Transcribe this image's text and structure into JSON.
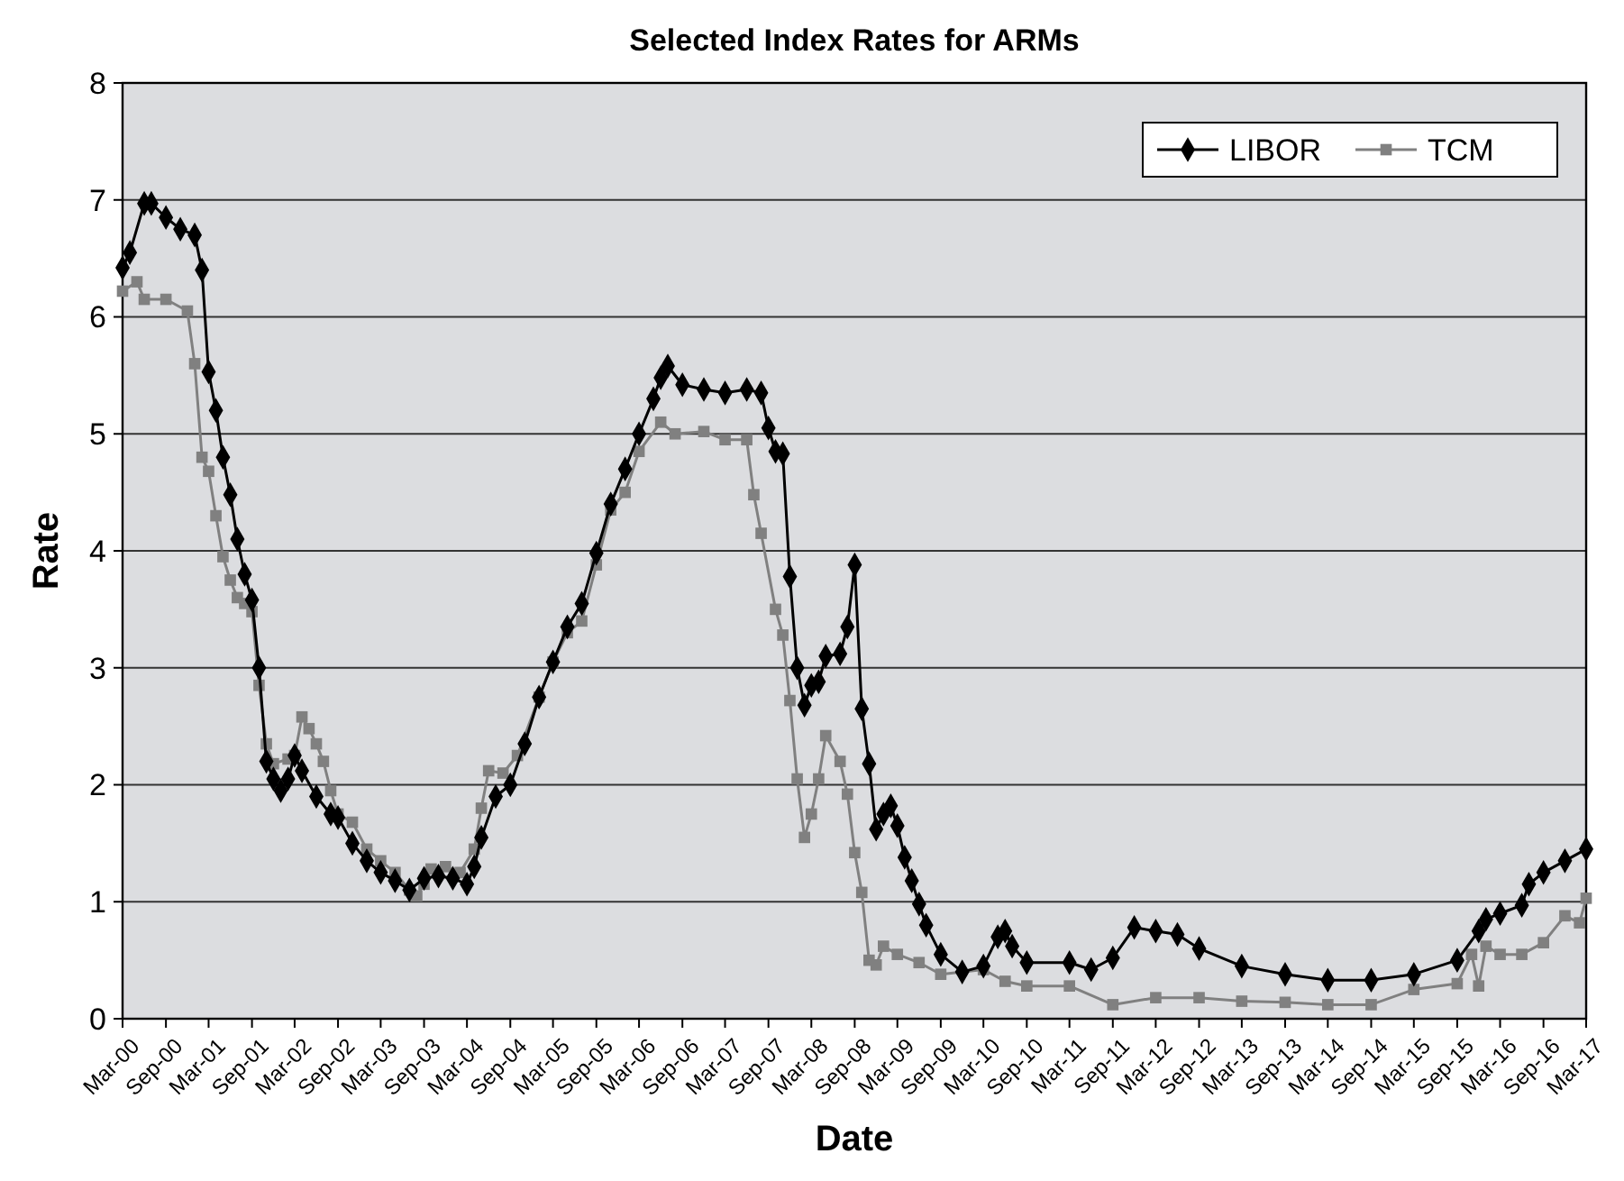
{
  "chart_data": {
    "type": "line",
    "title": "Selected Index Rates for ARMs",
    "xlabel": "Date",
    "ylabel": "Rate",
    "ylim": [
      0,
      8
    ],
    "yticks": [
      0,
      1,
      2,
      3,
      4,
      5,
      6,
      7,
      8
    ],
    "xlim": [
      "2000-03",
      "2017-03"
    ],
    "xticks": [
      {
        "value": "2000-03",
        "label": "Mar-00"
      },
      {
        "value": "2000-09",
        "label": "Sep-00"
      },
      {
        "value": "2001-03",
        "label": "Mar-01"
      },
      {
        "value": "2001-09",
        "label": "Sep-01"
      },
      {
        "value": "2002-03",
        "label": "Mar-02"
      },
      {
        "value": "2002-09",
        "label": "Sep-02"
      },
      {
        "value": "2003-03",
        "label": "Mar-03"
      },
      {
        "value": "2003-09",
        "label": "Sep-03"
      },
      {
        "value": "2004-03",
        "label": "Mar-04"
      },
      {
        "value": "2004-09",
        "label": "Sep-04"
      },
      {
        "value": "2005-03",
        "label": "Mar-05"
      },
      {
        "value": "2005-09",
        "label": "Sep-05"
      },
      {
        "value": "2006-03",
        "label": "Mar-06"
      },
      {
        "value": "2006-09",
        "label": "Sep-06"
      },
      {
        "value": "2007-03",
        "label": "Mar-07"
      },
      {
        "value": "2007-09",
        "label": "Sep-07"
      },
      {
        "value": "2008-03",
        "label": "Mar-08"
      },
      {
        "value": "2008-09",
        "label": "Sep-08"
      },
      {
        "value": "2009-03",
        "label": "Mar-09"
      },
      {
        "value": "2009-09",
        "label": "Sep-09"
      },
      {
        "value": "2010-03",
        "label": "Mar-10"
      },
      {
        "value": "2010-09",
        "label": "Sep-10"
      },
      {
        "value": "2011-03",
        "label": "Mar-11"
      },
      {
        "value": "2011-09",
        "label": "Sep-11"
      },
      {
        "value": "2012-03",
        "label": "Mar-12"
      },
      {
        "value": "2012-09",
        "label": "Sep-12"
      },
      {
        "value": "2013-03",
        "label": "Mar-13"
      },
      {
        "value": "2013-09",
        "label": "Sep-13"
      },
      {
        "value": "2014-03",
        "label": "Mar-14"
      },
      {
        "value": "2014-09",
        "label": "Sep-14"
      },
      {
        "value": "2015-03",
        "label": "Mar-15"
      },
      {
        "value": "2015-09",
        "label": "Sep-15"
      },
      {
        "value": "2016-03",
        "label": "Mar-16"
      },
      {
        "value": "2016-09",
        "label": "Sep-16"
      },
      {
        "value": "2017-03",
        "label": "Mar-17"
      }
    ],
    "grid": "y",
    "legend": "top right",
    "line_style": "solid",
    "series": [
      {
        "name": "LIBOR",
        "color": "#000000",
        "marker": "diamond",
        "x": [
          "2000-03",
          "2000-04",
          "2000-06",
          "2000-07",
          "2000-09",
          "2000-11",
          "2001-01",
          "2001-02",
          "2001-03",
          "2001-04",
          "2001-05",
          "2001-06",
          "2001-07",
          "2001-08",
          "2001-09",
          "2001-10",
          "2001-11",
          "2001-12",
          "2002-01",
          "2002-02",
          "2002-03",
          "2002-04",
          "2002-06",
          "2002-08",
          "2002-09",
          "2002-11",
          "2003-01",
          "2003-03",
          "2003-05",
          "2003-07",
          "2003-09",
          "2003-11",
          "2004-01",
          "2004-03",
          "2004-04",
          "2004-05",
          "2004-07",
          "2004-09",
          "2004-11",
          "2005-01",
          "2005-03",
          "2005-05",
          "2005-07",
          "2005-09",
          "2005-11",
          "2006-01",
          "2006-03",
          "2006-05",
          "2006-06",
          "2006-07",
          "2006-09",
          "2006-12",
          "2007-03",
          "2007-06",
          "2007-08",
          "2007-09",
          "2007-10",
          "2007-11",
          "2007-12",
          "2008-01",
          "2008-02",
          "2008-03",
          "2008-04",
          "2008-05",
          "2008-07",
          "2008-08",
          "2008-09",
          "2008-10",
          "2008-11",
          "2008-12",
          "2009-01",
          "2009-02",
          "2009-03",
          "2009-04",
          "2009-05",
          "2009-06",
          "2009-07",
          "2009-09",
          "2009-12",
          "2010-03",
          "2010-05",
          "2010-06",
          "2010-07",
          "2010-09",
          "2011-03",
          "2011-06",
          "2011-09",
          "2011-12",
          "2012-03",
          "2012-06",
          "2012-09",
          "2013-03",
          "2013-09",
          "2014-03",
          "2014-09",
          "2015-03",
          "2015-09",
          "2015-12",
          "2016-01",
          "2016-03",
          "2016-06",
          "2016-07",
          "2016-09",
          "2016-12",
          "2017-03"
        ],
        "values": [
          6.42,
          6.55,
          6.97,
          6.97,
          6.85,
          6.75,
          6.7,
          6.4,
          5.53,
          5.2,
          4.8,
          4.48,
          4.1,
          3.8,
          3.58,
          3.0,
          2.2,
          2.05,
          1.95,
          2.05,
          2.25,
          2.12,
          1.9,
          1.75,
          1.72,
          1.5,
          1.35,
          1.25,
          1.18,
          1.1,
          1.2,
          1.22,
          1.2,
          1.15,
          1.3,
          1.55,
          1.9,
          2.0,
          2.35,
          2.75,
          3.05,
          3.35,
          3.55,
          3.98,
          4.4,
          4.7,
          5.0,
          5.3,
          5.48,
          5.58,
          5.42,
          5.38,
          5.35,
          5.38,
          5.35,
          5.05,
          4.85,
          4.83,
          3.78,
          3.0,
          2.68,
          2.85,
          2.88,
          3.1,
          3.12,
          3.35,
          3.88,
          2.65,
          2.18,
          1.62,
          1.75,
          1.82,
          1.65,
          1.38,
          1.18,
          0.98,
          0.8,
          0.55,
          0.4,
          0.45,
          0.7,
          0.75,
          0.62,
          0.48,
          0.48,
          0.42,
          0.52,
          0.78,
          0.75,
          0.72,
          0.6,
          0.45,
          0.38,
          0.33,
          0.33,
          0.38,
          0.5,
          0.75,
          0.85,
          0.9,
          0.97,
          1.15,
          1.25,
          1.35,
          1.45
        ]
      },
      {
        "name": "TCM",
        "color": "#808080",
        "marker": "square",
        "x": [
          "2000-03",
          "2000-05",
          "2000-06",
          "2000-09",
          "2000-12",
          "2001-01",
          "2001-02",
          "2001-03",
          "2001-04",
          "2001-05",
          "2001-06",
          "2001-07",
          "2001-08",
          "2001-09",
          "2001-10",
          "2001-11",
          "2001-12",
          "2002-02",
          "2002-03",
          "2002-04",
          "2002-05",
          "2002-06",
          "2002-07",
          "2002-08",
          "2002-09",
          "2002-11",
          "2003-01",
          "2003-03",
          "2003-05",
          "2003-07",
          "2003-08",
          "2003-09",
          "2003-10",
          "2003-12",
          "2004-02",
          "2004-04",
          "2004-05",
          "2004-06",
          "2004-08",
          "2004-10",
          "2005-01",
          "2005-03",
          "2005-05",
          "2005-07",
          "2005-09",
          "2005-11",
          "2006-01",
          "2006-03",
          "2006-06",
          "2006-08",
          "2006-12",
          "2007-03",
          "2007-06",
          "2007-07",
          "2007-08",
          "2007-10",
          "2007-11",
          "2007-12",
          "2008-01",
          "2008-02",
          "2008-03",
          "2008-04",
          "2008-05",
          "2008-07",
          "2008-08",
          "2008-09",
          "2008-10",
          "2008-11",
          "2008-12",
          "2009-01",
          "2009-03",
          "2009-06",
          "2009-09",
          "2010-03",
          "2010-06",
          "2010-09",
          "2011-03",
          "2011-09",
          "2012-03",
          "2012-09",
          "2013-03",
          "2013-09",
          "2014-03",
          "2014-09",
          "2015-03",
          "2015-09",
          "2015-11",
          "2015-12",
          "2016-01",
          "2016-03",
          "2016-06",
          "2016-09",
          "2016-12",
          "2017-02",
          "2017-03"
        ],
        "values": [
          6.22,
          6.3,
          6.15,
          6.15,
          6.05,
          5.6,
          4.8,
          4.68,
          4.3,
          3.95,
          3.75,
          3.6,
          3.55,
          3.48,
          2.85,
          2.35,
          2.18,
          2.22,
          2.25,
          2.58,
          2.48,
          2.35,
          2.2,
          1.95,
          1.75,
          1.68,
          1.45,
          1.35,
          1.25,
          1.1,
          1.05,
          1.15,
          1.28,
          1.3,
          1.25,
          1.45,
          1.8,
          2.12,
          2.1,
          2.25,
          2.75,
          3.05,
          3.3,
          3.4,
          3.88,
          4.35,
          4.5,
          4.85,
          5.1,
          5.0,
          5.02,
          4.95,
          4.95,
          4.48,
          4.15,
          3.5,
          3.28,
          2.72,
          2.05,
          1.55,
          1.75,
          2.05,
          2.42,
          2.2,
          1.92,
          1.42,
          1.08,
          0.5,
          0.46,
          0.62,
          0.55,
          0.48,
          0.38,
          0.42,
          0.32,
          0.28,
          0.28,
          0.12,
          0.18,
          0.18,
          0.15,
          0.14,
          0.12,
          0.12,
          0.25,
          0.3,
          0.55,
          0.28,
          0.62,
          0.55,
          0.55,
          0.65,
          0.88,
          0.82,
          1.03
        ]
      }
    ]
  }
}
